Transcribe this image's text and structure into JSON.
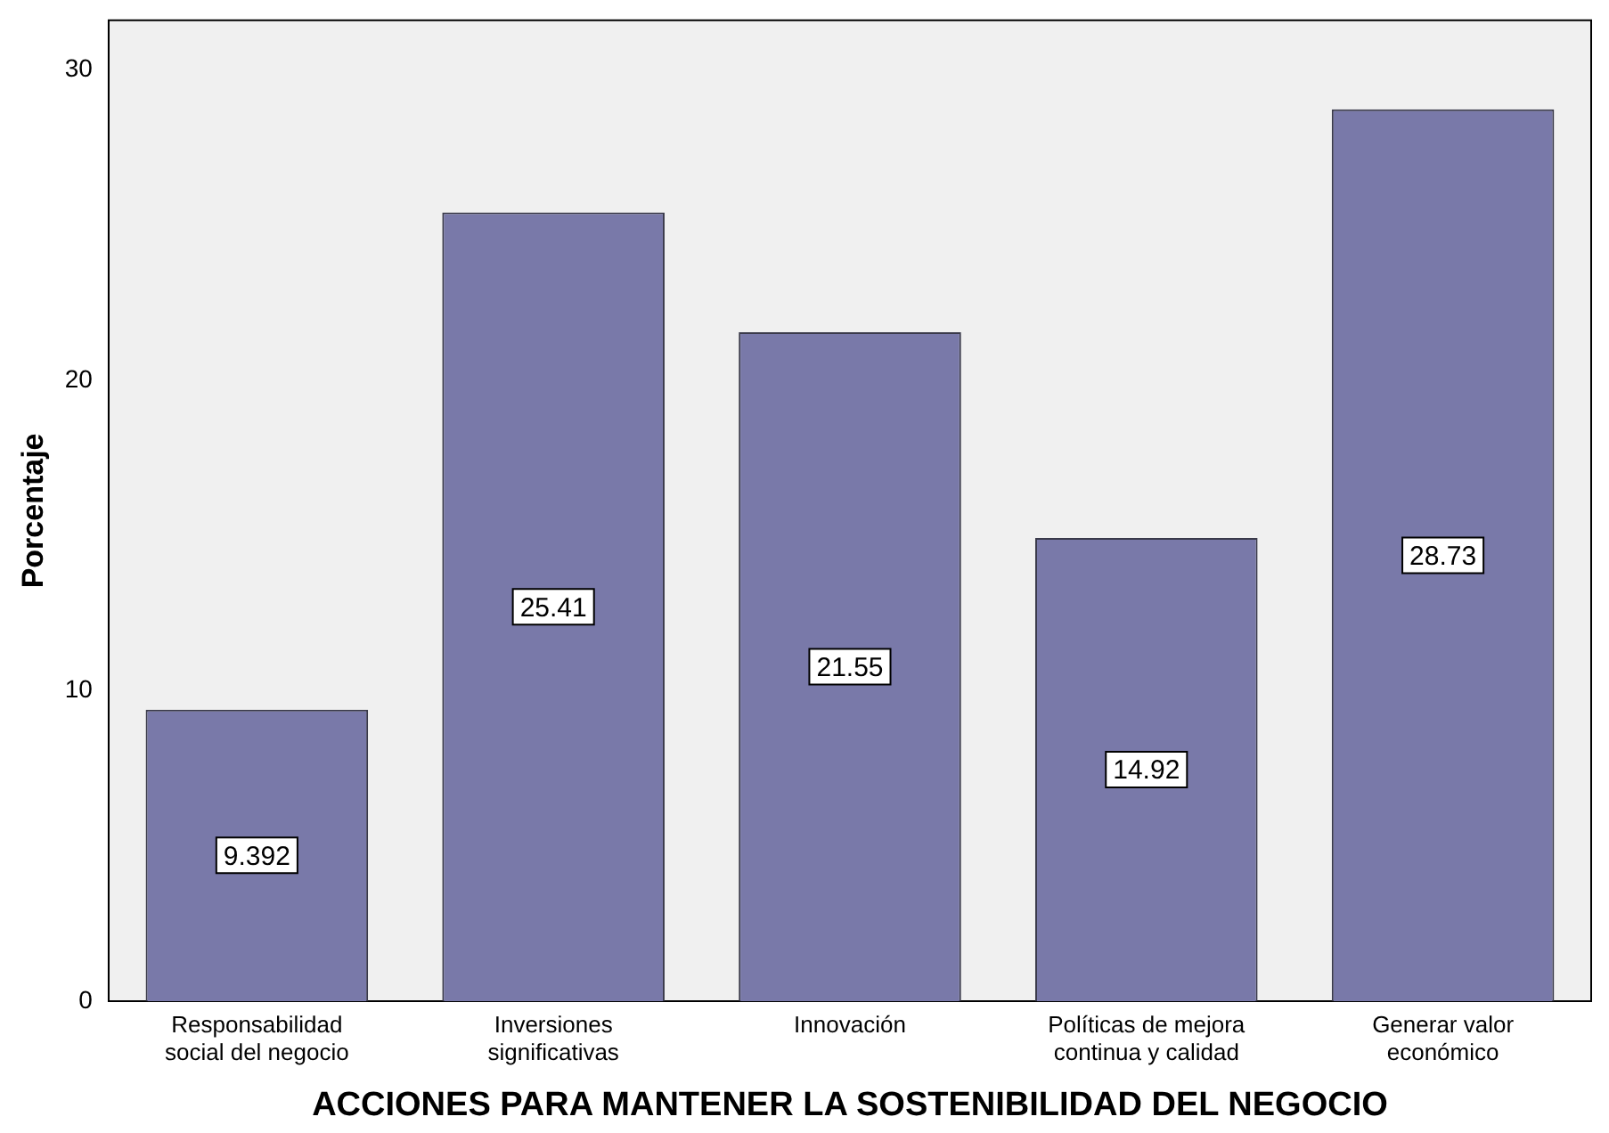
{
  "chart_data": {
    "type": "bar",
    "xlabel": "ACCIONES PARA MANTENER LA SOSTENIBILIDAD DEL NEGOCIO",
    "ylabel": "Porcentaje",
    "categories": [
      "Responsabilidad social del negocio",
      "Inversiones significativas",
      "Innovación",
      "Políticas de mejora continua y calidad",
      "Generar valor económico"
    ],
    "values": [
      9.392,
      25.41,
      21.55,
      14.92,
      28.73
    ],
    "color": "#7979a9",
    "ylim": [
      0,
      31.6
    ],
    "yticks": [
      0,
      10,
      20,
      30
    ],
    "grid": false,
    "legend": false,
    "data_labels": true
  }
}
